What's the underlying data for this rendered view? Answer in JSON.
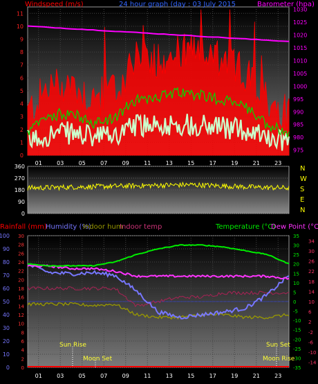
{
  "header": {
    "wind_title": "Windspeed (m/s)",
    "graph_title": "24 hour graph (day : 03 July 2015",
    "baro_title": "Barometer (hpa)"
  },
  "bottom_header": {
    "rain": "Rainfall (mm)",
    "humidity": "Humidity (%)",
    "indoor_hum": "Indoor hum",
    "indoor_temp": "Indoor temp",
    "temperature": "Temperature (°C)",
    "dewpoint": "Dew Point (°C)"
  },
  "direction_labels": [
    "N",
    "W",
    "S",
    "E",
    "N"
  ],
  "hours": [
    "01",
    "03",
    "05",
    "07",
    "09",
    "11",
    "13",
    "15",
    "17",
    "19",
    "21",
    "23"
  ],
  "astro": {
    "sun_rise": "Sun Rise",
    "moon_set": "Moon Set",
    "sun_set": "Sun Set",
    "moon_rise": "Moon Rise"
  },
  "colors": {
    "wind_gust": "#ff0000",
    "wind_avg": "#00dd00",
    "wind_low": "#ccffcc",
    "barometer": "#ff00ff",
    "direction": "#ffff00",
    "humidity": "#7777ff",
    "indoor_hum": "#999900",
    "indoor_temp": "#aa2255",
    "temperature": "#00ee00",
    "dewpoint": "#ff33ff",
    "rain": "#ff0000"
  },
  "chart_data": [
    {
      "type": "line",
      "name": "wind-barometer",
      "x_range": [
        0,
        24
      ],
      "left_axis": {
        "label": "Windspeed (m/s)",
        "range": [
          0,
          11.5
        ],
        "ticks": [
          0,
          1,
          2,
          3,
          4,
          5,
          6,
          7,
          8,
          9,
          10,
          11
        ]
      },
      "right_axis": {
        "label": "Barometer (hpa)",
        "range": [
          973,
          1031
        ],
        "ticks": [
          975,
          980,
          985,
          990,
          995,
          1000,
          1005,
          1010,
          1015,
          1020,
          1025,
          1030
        ]
      },
      "series": [
        {
          "name": "Windspeed",
          "x": [
            0,
            2,
            4,
            6,
            8,
            10,
            12,
            14,
            16,
            18,
            20,
            22,
            24
          ],
          "values": [
            2.5,
            4.5,
            4.8,
            3.5,
            4.2,
            6.5,
            6.8,
            7.2,
            7.0,
            6.3,
            5.5,
            3.5,
            2.5
          ]
        },
        {
          "name": "Barometer",
          "x": [
            0,
            2,
            4,
            6,
            8,
            10,
            12,
            14,
            16,
            18,
            20,
            22,
            24
          ],
          "values": [
            1023.5,
            1023,
            1022.5,
            1022,
            1021.5,
            1021,
            1020.5,
            1020,
            1019.5,
            1019,
            1018.5,
            1018,
            1017.5
          ]
        }
      ]
    },
    {
      "type": "scatter",
      "name": "wind-direction",
      "x_range": [
        0,
        24
      ],
      "y_axis": {
        "range": [
          0,
          360
        ],
        "ticks": [
          0,
          90,
          180,
          270,
          360
        ]
      },
      "series": [
        {
          "name": "Wind direction",
          "x": [
            0,
            3,
            6,
            9,
            12,
            15,
            18,
            21,
            24
          ],
          "values": [
            195,
            200,
            205,
            210,
            215,
            220,
            210,
            200,
            195
          ]
        }
      ]
    },
    {
      "type": "line",
      "name": "temperature-humidity",
      "x_range": [
        0,
        24
      ],
      "left_axes": [
        {
          "label": "Rainfall (mm)",
          "range": [
            0,
            30
          ],
          "ticks": [
            0,
            2,
            4,
            6,
            8,
            10,
            12,
            14,
            16,
            18,
            20,
            22,
            24,
            26,
            28,
            30
          ]
        },
        {
          "label": "Humidity (%)",
          "range": [
            0,
            100
          ],
          "ticks": [
            0,
            10,
            20,
            30,
            40,
            50,
            60,
            70,
            80,
            90,
            100
          ]
        }
      ],
      "right_axes": [
        {
          "label": "Temperature (°C)",
          "range": [
            -35,
            35
          ],
          "ticks": [
            35,
            30,
            25,
            20,
            15,
            10,
            5,
            0,
            -5,
            -10,
            -15,
            -20,
            -25,
            -30,
            -35
          ]
        },
        {
          "label": "Dew Point (°C)",
          "range": [
            -16,
            36
          ],
          "ticks": [
            34,
            30,
            26,
            22,
            18,
            14,
            10,
            6,
            2,
            -2,
            -6,
            -10,
            -14
          ]
        }
      ],
      "series": [
        {
          "name": "Temperature",
          "x": [
            0,
            2,
            4,
            6,
            8,
            10,
            12,
            14,
            16,
            18,
            20,
            22,
            24
          ],
          "values": [
            20,
            19,
            19,
            19,
            21,
            25,
            28,
            30,
            30,
            29,
            27,
            25,
            20
          ]
        },
        {
          "name": "Humidity",
          "x": [
            0,
            2,
            4,
            6,
            8,
            10,
            12,
            14,
            16,
            18,
            20,
            22,
            24
          ],
          "values": [
            78,
            72,
            71,
            72,
            70,
            58,
            42,
            38,
            40,
            42,
            45,
            55,
            70
          ]
        },
        {
          "name": "Dew Point",
          "x": [
            0,
            2,
            4,
            6,
            8,
            10,
            12,
            14,
            16,
            18,
            20,
            22,
            24
          ],
          "values": [
            24,
            24,
            23,
            23,
            22,
            20,
            20,
            20,
            20,
            20,
            20,
            20,
            19
          ]
        },
        {
          "name": "Indoor hum",
          "x": [
            0,
            2,
            4,
            6,
            8,
            10,
            12,
            14,
            16,
            18,
            20,
            22,
            24
          ],
          "values": [
            48,
            48,
            48,
            47,
            48,
            40,
            38,
            38,
            40,
            40,
            38,
            38,
            40
          ]
        },
        {
          "name": "Indoor temp",
          "x": [
            0,
            2,
            4,
            6,
            8,
            10,
            12,
            14,
            16,
            18,
            20,
            22,
            24
          ],
          "values": [
            18,
            18,
            18,
            18,
            18,
            14,
            15,
            16,
            16,
            17,
            17,
            17,
            17
          ]
        },
        {
          "name": "Rainfall",
          "x": [
            0,
            24
          ],
          "values": [
            0,
            0
          ]
        }
      ]
    }
  ]
}
